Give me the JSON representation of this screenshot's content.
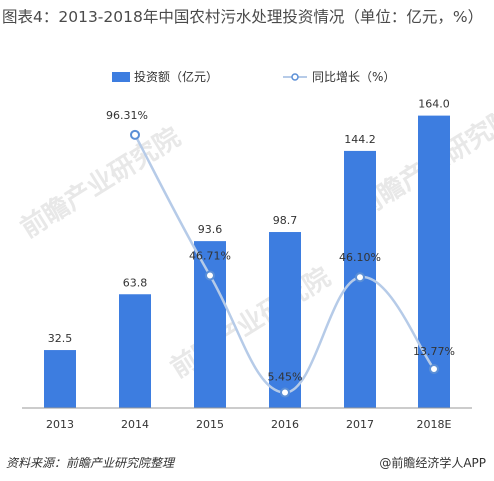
{
  "title": "图表4：2013-2018年中国农村污水处理投资情况（单位：亿元，%）",
  "source": "资料来源：前瞻产业研究院整理",
  "brand": "@前瞻经济学人APP",
  "watermark": "前瞻产业研究院",
  "colors": {
    "bar": "#3d7de0",
    "line": "#b6cbe8",
    "marker": "#5b8fd6",
    "axis": "#999999",
    "text": "#333333"
  },
  "chart_data": {
    "type": "bar",
    "categories": [
      "2013",
      "2014",
      "2015",
      "2016",
      "2017",
      "2018E"
    ],
    "series": [
      {
        "name": "投资额（亿元）",
        "type": "bar",
        "axis": "left",
        "values": [
          32.5,
          63.8,
          93.6,
          98.7,
          144.2,
          164.0
        ],
        "labels": [
          "32.5",
          "63.8",
          "93.6",
          "98.7",
          "144.2",
          "164.0"
        ]
      },
      {
        "name": "同比增长（%）",
        "type": "line",
        "axis": "right",
        "values": [
          null,
          96.31,
          46.71,
          5.45,
          46.1,
          13.77
        ],
        "labels": [
          "",
          "96.31%",
          "46.71%",
          "5.45%",
          "46.10%",
          "13.77%"
        ]
      }
    ],
    "legend_position": "top",
    "grid": false
  }
}
